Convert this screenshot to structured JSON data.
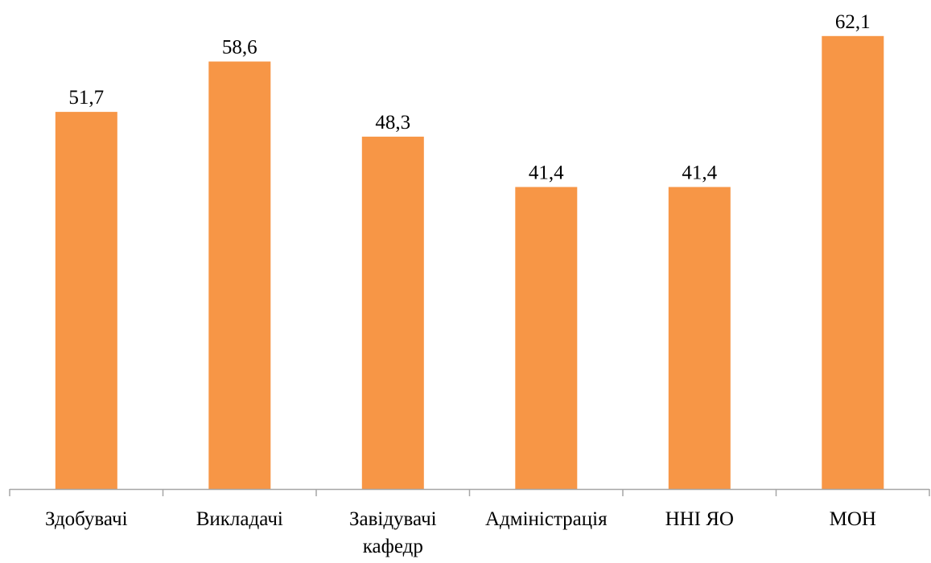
{
  "chart_data": {
    "type": "bar",
    "categories": [
      [
        "Здобувачі"
      ],
      [
        "Викладачі"
      ],
      [
        "Завідувачі",
        "кафедр"
      ],
      [
        "Адміністрація"
      ],
      [
        "ННІ ЯО"
      ],
      [
        "МОН"
      ]
    ],
    "values": [
      51.7,
      58.6,
      48.3,
      41.4,
      41.4,
      62.1
    ],
    "value_labels": [
      "51,7",
      "58,6",
      "48,3",
      "41,4",
      "41,4",
      "62,1"
    ],
    "ylim": [
      0,
      70
    ],
    "grid": false,
    "bar_color": "#f79646",
    "axis_color": "#a6a6a6"
  }
}
